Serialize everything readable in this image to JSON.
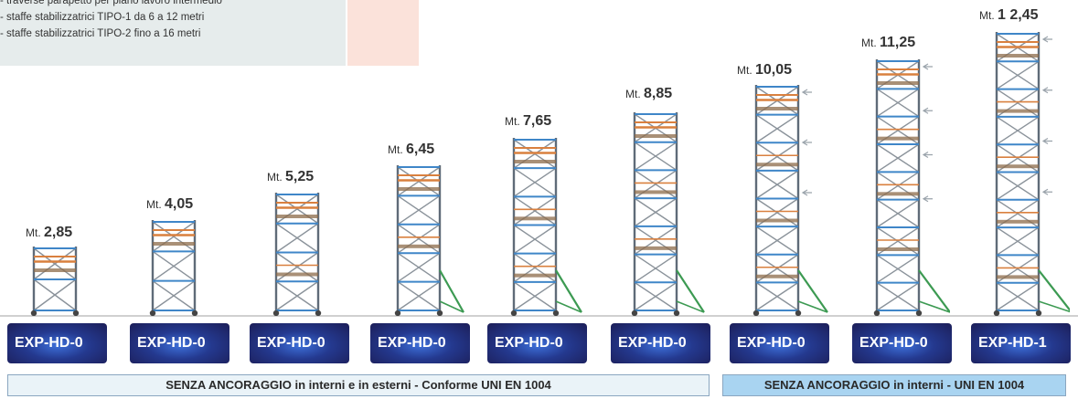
{
  "notes": {
    "lines": [
      "- traverse parapetto per piano lavoro intermedio",
      "- staffe stabilizzatrici TIPO-1 da 6 a 12 metri",
      "- staffe stabilizzatrici TIPO-2 fino a 16 metri"
    ]
  },
  "towers": [
    {
      "unit": "Mt.",
      "height": "2,85",
      "model": "EXP-HD-0"
    },
    {
      "unit": "Mt.",
      "height": "4,05",
      "model": "EXP-HD-0"
    },
    {
      "unit": "Mt.",
      "height": "5,25",
      "model": "EXP-HD-0"
    },
    {
      "unit": "Mt.",
      "height": "6,45",
      "model": "EXP-HD-0"
    },
    {
      "unit": "Mt.",
      "height": "7,65",
      "model": "EXP-HD-0"
    },
    {
      "unit": "Mt.",
      "height": "8,85",
      "model": "EXP-HD-0"
    },
    {
      "unit": "Mt.",
      "height": "10,05",
      "model": "EXP-HD-0"
    },
    {
      "unit": "Mt.",
      "height": "11,25",
      "model": "EXP-HD-0"
    },
    {
      "unit": "Mt.",
      "height": "1 2,45",
      "model": "EXP-HD-1"
    }
  ],
  "footer": {
    "left": "SENZA ANCORAGGIO in interni e in esterni - Conforme UNI EN 1004",
    "right": "SENZA ANCORAGGIO in interni - UNI EN 1004"
  },
  "colors": {
    "button_dark": "#1c1e58",
    "button_light": "#3d6fd9",
    "footer_left_bg": "#eaf3f8",
    "footer_right_bg": "#a9d4f1",
    "notes_bg": "#e6ecec",
    "notes_accent_bg": "#fbe2da",
    "frame": "#5f6b78",
    "rail_blue": "#3f86c8",
    "rail_orange": "#d9803f",
    "platform": "#8c6b4a",
    "stabilizer": "#3c9a52"
  }
}
